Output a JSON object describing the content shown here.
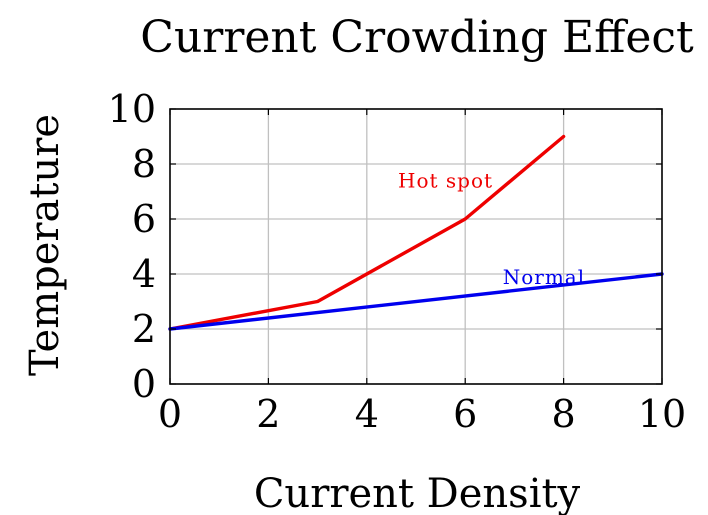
{
  "chart_data": {
    "type": "line",
    "title": "Current Crowding Effect",
    "xlabel": "Current Density",
    "ylabel": "Temperature",
    "xlim": [
      0,
      10
    ],
    "ylim": [
      0,
      10
    ],
    "xticks": [
      0,
      2,
      4,
      6,
      8,
      10
    ],
    "yticks": [
      0,
      2,
      4,
      6,
      8,
      10
    ],
    "grid": true,
    "series": [
      {
        "color": "#ee0000",
        "x": [
          0,
          3,
          6,
          8
        ],
        "y": [
          2,
          3,
          6,
          9
        ]
      },
      {
        "color": "#0000ee",
        "x": [
          0,
          10
        ],
        "y": [
          2,
          4
        ]
      }
    ],
    "annotations": [
      {
        "text": "Hot spot",
        "x": 5.6,
        "y": 7.4,
        "color": "#ee0000"
      },
      {
        "text": "Normal",
        "x": 7.6,
        "y": 3.9,
        "color": "#0000ee"
      }
    ]
  }
}
